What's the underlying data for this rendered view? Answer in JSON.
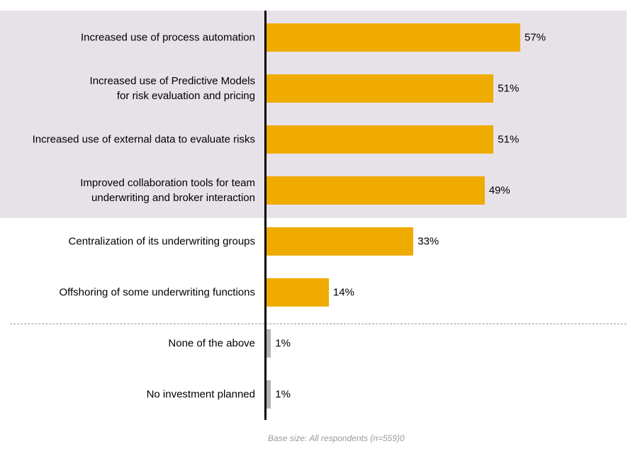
{
  "chart_data": {
    "type": "bar",
    "orientation": "horizontal",
    "categories": [
      "Increased use of process automation",
      "Increased use of Predictive Models\nfor risk evaluation  and pricing",
      "Increased use of external data to evaluate  risks",
      "Improved collaboration tools for team\nunderwriting and broker interaction",
      "Centralization of its underwriting groups",
      "Offshoring of some  underwriting functions",
      "None of the above",
      "No investment  planned"
    ],
    "values": [
      57,
      51,
      51,
      49,
      33,
      14,
      1,
      1
    ],
    "value_labels": [
      "57%",
      "51%",
      "51%",
      "49%",
      "33%",
      "14%",
      "1%",
      "1%"
    ],
    "bar_colors": [
      "#f0ab00",
      "#f0ab00",
      "#f0ab00",
      "#f0ab00",
      "#f0ab00",
      "#f0ab00",
      "#b3b3b3",
      "#b3b3b3"
    ],
    "highlight_band_color": "#e6e2e8",
    "xlim": [
      0,
      100
    ],
    "footnote": "Base size: All respondents  (n=559)0"
  }
}
